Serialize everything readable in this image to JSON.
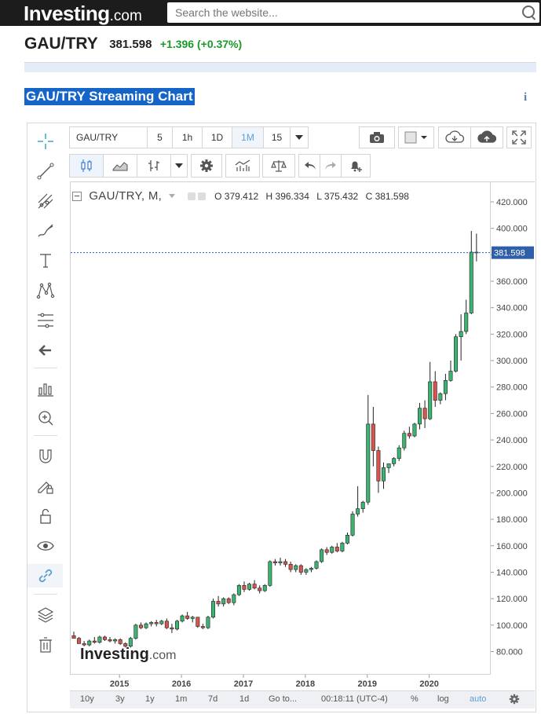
{
  "header": {
    "logo_main": "Investing",
    "logo_suffix": ".com",
    "search_placeholder": "Search the website..."
  },
  "quote": {
    "symbol": "GAU/TRY",
    "last": "381.598",
    "change": "+1.396 (+0.37%)"
  },
  "page_title": "GAU/TRY Streaming Chart",
  "info_label": "i",
  "toolbar": {
    "symbol_value": "GAU/TRY",
    "intervals": [
      "5",
      "1h",
      "1D",
      "1M",
      "15"
    ],
    "selected_interval": "1M"
  },
  "legend": {
    "name": "GAU/TRY, M,",
    "open": "O 379.412",
    "high": "H 396.334",
    "low": "L 375.432",
    "close": "C 381.598"
  },
  "watermark": {
    "main": "Investing",
    "suffix": ".com"
  },
  "bottom_bar": {
    "ranges": [
      "10y",
      "3y",
      "1y",
      "1m",
      "7d",
      "1d"
    ],
    "goto": "Go to...",
    "time": "00:18:11 (UTC-4)",
    "percent": "%",
    "log": "log",
    "auto": "auto"
  },
  "colors": {
    "up": "#3cb371",
    "down": "#d9534f",
    "accent": "#1565c8",
    "price_line": "#2f5fa8"
  },
  "icons": [
    "crosshair-icon",
    "trend-line-icon",
    "pitchfork-icon",
    "brush-icon",
    "text-icon",
    "pattern-icon",
    "fib-icon",
    "arrow-left-icon",
    "measure-icon",
    "zoom-in-icon",
    "magnet-icon",
    "lock-draw-icon",
    "unlock-icon",
    "eye-icon",
    "link-icon",
    "layers-icon",
    "trash-icon",
    "camera-icon",
    "settings-icon",
    "compare-icon",
    "undo-icon",
    "redo-icon",
    "alert-icon",
    "download-icon",
    "upload-icon",
    "fullscreen-icon"
  ],
  "chart_data": {
    "type": "candlestick",
    "title": "GAU/TRY, M,",
    "ylim": [
      70,
      432
    ],
    "yticks": [
      80,
      100,
      120,
      140,
      160,
      180,
      200,
      220,
      240,
      260,
      280,
      300,
      320,
      340,
      360,
      380,
      400,
      420
    ],
    "ytick_labels": [
      "80.000",
      "100.000",
      "120.000",
      "140.000",
      "160.000",
      "180.000",
      "200.000",
      "220.000",
      "240.000",
      "260.000",
      "280.000",
      "300.000",
      "320.000",
      "340.000",
      "360.000",
      "380.000",
      "400.000",
      "420.000"
    ],
    "xticks": [
      "2015",
      "2016",
      "2017",
      "2018",
      "2019",
      "2020"
    ],
    "x_start": "2014-04",
    "current_price": 381.598,
    "current_price_label": "381.598",
    "candles": [
      [
        92,
        95,
        90,
        90
      ],
      [
        90,
        91,
        86,
        86
      ],
      [
        86,
        88,
        84,
        85
      ],
      [
        85,
        89,
        84,
        88
      ],
      [
        88,
        91,
        86,
        87
      ],
      [
        87,
        92,
        86,
        91
      ],
      [
        91,
        92,
        88,
        89
      ],
      [
        89,
        91,
        87,
        88
      ],
      [
        88,
        90,
        86,
        89
      ],
      [
        89,
        90,
        85,
        86
      ],
      [
        86,
        87,
        83,
        84
      ],
      [
        84,
        91,
        83,
        90
      ],
      [
        90,
        101,
        89,
        100
      ],
      [
        100,
        102,
        97,
        98
      ],
      [
        98,
        102,
        97,
        101
      ],
      [
        101,
        103,
        99,
        102
      ],
      [
        102,
        104,
        99,
        101
      ],
      [
        101,
        104,
        100,
        103
      ],
      [
        103,
        105,
        97,
        98
      ],
      [
        98,
        101,
        94,
        97
      ],
      [
        97,
        104,
        96,
        103
      ],
      [
        103,
        108,
        102,
        107
      ],
      [
        107,
        110,
        104,
        105
      ],
      [
        105,
        107,
        102,
        106
      ],
      [
        106,
        106,
        98,
        99
      ],
      [
        99,
        101,
        97,
        98
      ],
      [
        98,
        107,
        97,
        106
      ],
      [
        106,
        120,
        105,
        118
      ],
      [
        118,
        122,
        114,
        116
      ],
      [
        116,
        121,
        114,
        120
      ],
      [
        120,
        121,
        116,
        117
      ],
      [
        117,
        124,
        115,
        123
      ],
      [
        123,
        131,
        122,
        130
      ],
      [
        130,
        133,
        125,
        127
      ],
      [
        127,
        132,
        126,
        131
      ],
      [
        131,
        134,
        127,
        128
      ],
      [
        128,
        130,
        124,
        126
      ],
      [
        126,
        131,
        125,
        130
      ],
      [
        130,
        149,
        129,
        148
      ],
      [
        148,
        150,
        145,
        147
      ],
      [
        147,
        151,
        145,
        148
      ],
      [
        148,
        150,
        144,
        146
      ],
      [
        146,
        148,
        140,
        142
      ],
      [
        142,
        146,
        140,
        145
      ],
      [
        145,
        146,
        138,
        140
      ],
      [
        140,
        143,
        138,
        142
      ],
      [
        142,
        144,
        140,
        143
      ],
      [
        143,
        149,
        142,
        148
      ],
      [
        148,
        158,
        147,
        157
      ],
      [
        157,
        159,
        153,
        155
      ],
      [
        155,
        160,
        154,
        159
      ],
      [
        159,
        162,
        155,
        156
      ],
      [
        156,
        163,
        155,
        162
      ],
      [
        162,
        170,
        161,
        168
      ],
      [
        168,
        186,
        167,
        184
      ],
      [
        184,
        205,
        182,
        188
      ],
      [
        188,
        194,
        185,
        193
      ],
      [
        193,
        274,
        191,
        252
      ],
      [
        252,
        265,
        220,
        232
      ],
      [
        232,
        235,
        200,
        209
      ],
      [
        209,
        223,
        203,
        219
      ],
      [
        219,
        222,
        215,
        222
      ],
      [
        222,
        227,
        220,
        226
      ],
      [
        226,
        236,
        224,
        234
      ],
      [
        234,
        247,
        232,
        245
      ],
      [
        245,
        250,
        241,
        243
      ],
      [
        243,
        253,
        242,
        252
      ],
      [
        252,
        268,
        248,
        264
      ],
      [
        264,
        270,
        249,
        256
      ],
      [
        256,
        299,
        255,
        284
      ],
      [
        284,
        292,
        265,
        270
      ],
      [
        270,
        276,
        267,
        275
      ],
      [
        275,
        290,
        270,
        285
      ],
      [
        285,
        300,
        284,
        292
      ],
      [
        292,
        320,
        291,
        318
      ],
      [
        318,
        335,
        300,
        322
      ],
      [
        322,
        346,
        320,
        336
      ],
      [
        336,
        398,
        335,
        382
      ],
      [
        382,
        396,
        375,
        382
      ]
    ]
  }
}
